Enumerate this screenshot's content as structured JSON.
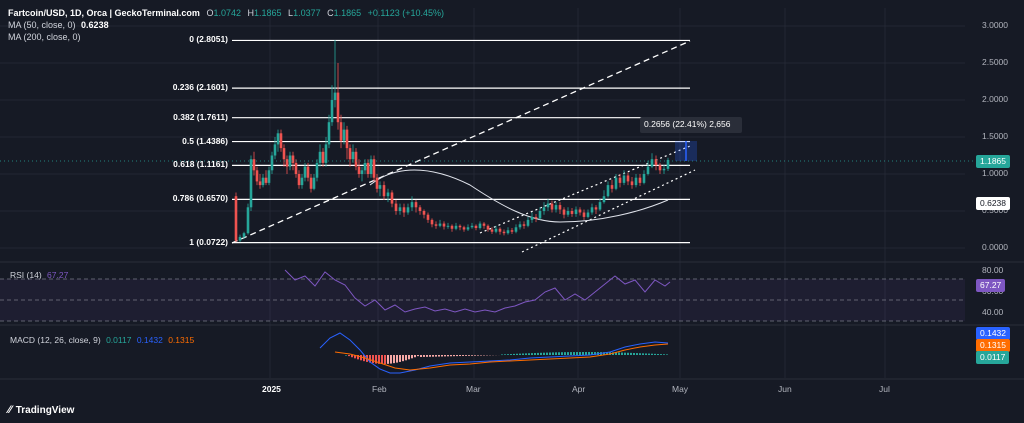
{
  "header": {
    "symbol": "Fartcoin/USD, 1D, Orca | GeckoTerminal.com",
    "open_label": "O",
    "open": "1.0742",
    "high_label": "H",
    "high": "1.1865",
    "low_label": "L",
    "low": "1.0377",
    "close_label": "C",
    "close": "1.1865",
    "change": "+0.1123 (+10.45%)",
    "ma50_label": "MA (50, close, 0)",
    "ma50_value": "0.6238",
    "ma200_label": "MA (200, close, 0)"
  },
  "price_axis": [
    "3.0000",
    "2.5000",
    "2.0000",
    "1.5000",
    "1.0000",
    "0.5000",
    "0.0000"
  ],
  "price_tags": {
    "last": "1.1865",
    "ma": "0.6238"
  },
  "fib_levels": [
    {
      "label": "0 (2.8051)",
      "price": 2.8051
    },
    {
      "label": "0.236 (2.1601)",
      "price": 2.1601
    },
    {
      "label": "0.382 (1.7611)",
      "price": 1.7611
    },
    {
      "label": "0.5 (1.4386)",
      "price": 1.4386
    },
    {
      "label": "0.618 (1.1161)",
      "price": 1.1161
    },
    {
      "label": "0.786 (0.6570)",
      "price": 0.657
    },
    {
      "label": "1 (0.0722)",
      "price": 0.0722
    }
  ],
  "measure_label": "0.2656 (22.41%) 2,656",
  "rsi": {
    "label": "RSI (14)",
    "value": "67.27",
    "axis": [
      "80.00",
      "60.00",
      "40.00"
    ]
  },
  "macd": {
    "label": "MACD (12, 26, close, 9)",
    "macd": "0.0117",
    "signal": "0.1432",
    "hist": "0.1315",
    "tags": [
      "0.1432",
      "0.1315",
      "0.0117"
    ]
  },
  "time_axis": [
    "2025",
    "Feb",
    "Mar",
    "Apr",
    "May",
    "Jun",
    "Jul"
  ],
  "branding": {
    "logo_text": "TradingView"
  },
  "colors": {
    "background": "#161a25",
    "up": "#26a69a",
    "down": "#ef5350",
    "rsi": "#7e57c2",
    "macd": "#2962ff",
    "signal": "#ff6d00"
  }
}
